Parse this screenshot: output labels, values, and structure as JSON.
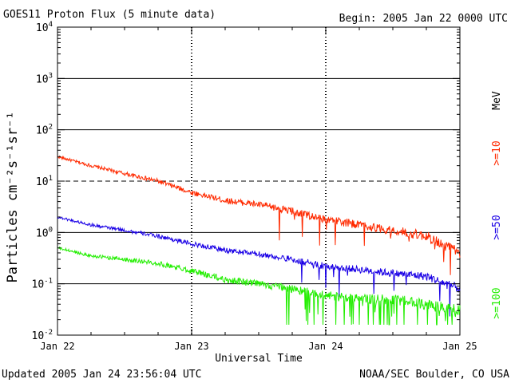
{
  "header": {
    "title": "GOES11 Proton Flux (5 minute data)",
    "begin": "Begin: 2005 Jan 22 0000 UTC"
  },
  "footer": {
    "updated": "Updated 2005 Jan 24 23:56:04 UTC",
    "credit": "NOAA/SEC Boulder, CO USA"
  },
  "chart_data": {
    "type": "line",
    "title": "GOES11 Proton Flux (5 minute data)",
    "xlabel": "Universal Time",
    "ylabel": "Particles cm⁻²s⁻¹sr⁻¹",
    "yscale": "log",
    "ylim": [
      0.01,
      10000
    ],
    "xlim": [
      "2005-01-22 00:00",
      "2005-01-25 00:00"
    ],
    "x_ticks": [
      "Jan 22",
      "Jan 23",
      "Jan 24",
      "Jan 25"
    ],
    "y_ticks": [
      {
        "value": 0.01,
        "base": "10",
        "exp": "-2"
      },
      {
        "value": 0.1,
        "base": "10",
        "exp": "-1"
      },
      {
        "value": 1,
        "base": "10",
        "exp": "0"
      },
      {
        "value": 10,
        "base": "10",
        "exp": "1"
      },
      {
        "value": 100,
        "base": "10",
        "exp": "2"
      },
      {
        "value": 1000,
        "base": "10",
        "exp": "3"
      },
      {
        "value": 10000,
        "base": "10",
        "exp": "4"
      }
    ],
    "threshold_line": {
      "value": 10,
      "style": "dashed"
    },
    "grid": true,
    "unit_label": "MeV",
    "series": [
      {
        "name": ">=10",
        "color": "#ff2a00",
        "x": [
          "2005-01-22 00:00",
          "2005-01-22 06:00",
          "2005-01-22 12:00",
          "2005-01-22 18:00",
          "2005-01-23 00:00",
          "2005-01-23 06:00",
          "2005-01-23 12:00",
          "2005-01-23 18:00",
          "2005-01-24 00:00",
          "2005-01-24 06:00",
          "2005-01-24 12:00",
          "2005-01-24 18:00",
          "2005-01-25 00:00"
        ],
        "values": [
          30,
          20,
          14,
          10,
          6,
          4.2,
          3.5,
          2.6,
          1.8,
          1.4,
          1.1,
          0.85,
          0.4
        ]
      },
      {
        "name": ">=50",
        "color": "#1a00e6",
        "x": [
          "2005-01-22 00:00",
          "2005-01-22 06:00",
          "2005-01-22 12:00",
          "2005-01-22 18:00",
          "2005-01-23 00:00",
          "2005-01-23 06:00",
          "2005-01-23 12:00",
          "2005-01-23 18:00",
          "2005-01-24 00:00",
          "2005-01-24 06:00",
          "2005-01-24 12:00",
          "2005-01-24 18:00",
          "2005-01-25 00:00"
        ],
        "values": [
          2.0,
          1.4,
          1.1,
          0.85,
          0.6,
          0.45,
          0.38,
          0.3,
          0.22,
          0.19,
          0.16,
          0.14,
          0.08
        ]
      },
      {
        "name": ">=100",
        "color": "#22ee00",
        "x": [
          "2005-01-22 00:00",
          "2005-01-22 06:00",
          "2005-01-22 12:00",
          "2005-01-22 18:00",
          "2005-01-23 00:00",
          "2005-01-23 06:00",
          "2005-01-23 12:00",
          "2005-01-23 18:00",
          "2005-01-24 00:00",
          "2005-01-24 06:00",
          "2005-01-24 12:00",
          "2005-01-24 18:00",
          "2005-01-25 00:00"
        ],
        "values": [
          0.5,
          0.35,
          0.3,
          0.25,
          0.18,
          0.12,
          0.1,
          0.08,
          0.06,
          0.05,
          0.05,
          0.04,
          0.03
        ]
      }
    ]
  }
}
